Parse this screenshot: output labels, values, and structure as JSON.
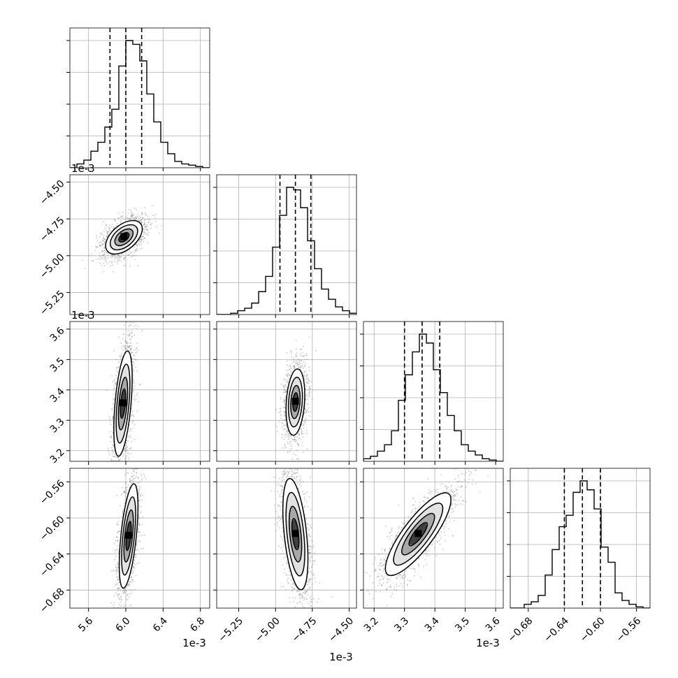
{
  "chart_data": {
    "type": "corner",
    "parameters": [
      {
        "ticks": [
          5.6,
          6.0,
          6.4,
          6.8
        ],
        "tick_labels": [
          "5.6",
          "6.0",
          "6.4",
          "6.8"
        ],
        "range": [
          5.4,
          6.9
        ],
        "offset": "1e-3",
        "quantiles": [
          5.83,
          6.0,
          6.17
        ],
        "hist": {
          "edges_start": 5.4,
          "bin_width": 0.075,
          "counts": [
            0,
            0.03,
            0.06,
            0.13,
            0.2,
            0.32,
            0.46,
            0.8,
            1.0,
            0.97,
            0.84,
            0.58,
            0.36,
            0.2,
            0.11,
            0.05,
            0.03,
            0.02,
            0.01,
            0.0
          ]
        }
      },
      {
        "ticks": [
          -5.25,
          -5.0,
          -4.75,
          -4.5
        ],
        "tick_labels": [
          "−5.25",
          "−5.00",
          "−4.75",
          "−4.50"
        ],
        "range": [
          -5.4,
          -4.45
        ],
        "offset": "1e-3",
        "quantiles": [
          -4.97,
          -4.865,
          -4.76
        ],
        "hist": {
          "edges_start": -5.4,
          "bin_width": 0.0475,
          "counts": [
            0,
            0,
            0.01,
            0.03,
            0.05,
            0.09,
            0.18,
            0.3,
            0.53,
            0.78,
            1.0,
            0.98,
            0.84,
            0.58,
            0.36,
            0.2,
            0.12,
            0.06,
            0.03,
            0.01
          ]
        }
      },
      {
        "ticks": [
          3.2,
          3.3,
          3.4,
          3.5,
          3.6
        ],
        "tick_labels": [
          "3.2",
          "3.3",
          "3.4",
          "3.5",
          "3.6"
        ],
        "range": [
          3.165,
          3.625
        ],
        "offset": "1e-3",
        "quantiles": [
          3.3,
          3.358,
          3.416
        ],
        "hist": {
          "edges_start": 3.165,
          "bin_width": 0.023,
          "counts": [
            0.02,
            0.04,
            0.08,
            0.13,
            0.24,
            0.48,
            0.68,
            0.86,
            1.0,
            0.93,
            0.72,
            0.54,
            0.36,
            0.24,
            0.13,
            0.08,
            0.05,
            0.02,
            0.01,
            0.0
          ]
        }
      },
      {
        "ticks": [
          -0.68,
          -0.64,
          -0.6,
          -0.56
        ],
        "tick_labels": [
          "−0.68",
          "−0.64",
          "−0.60",
          "−0.56"
        ],
        "range": [
          -0.7,
          -0.545
        ],
        "offset": "",
        "quantiles": [
          -0.64,
          -0.62,
          -0.6
        ],
        "hist": {
          "edges_start": -0.7,
          "bin_width": 0.00775,
          "counts": [
            0,
            0,
            0.03,
            0.05,
            0.1,
            0.26,
            0.46,
            0.64,
            0.73,
            0.91,
            1.0,
            0.93,
            0.78,
            0.48,
            0.36,
            0.12,
            0.06,
            0.03,
            0.01,
            0.0
          ]
        }
      }
    ],
    "pairs": [
      {
        "x": 0,
        "y": 1,
        "center": [
          5.98,
          -4.875
        ],
        "rx": 0.2,
        "ry": 0.09,
        "rotation_deg": 28
      },
      {
        "x": 0,
        "y": 2,
        "center": [
          5.97,
          3.355
        ],
        "rx": 0.18,
        "ry": 0.065,
        "rotation_deg": 74
      },
      {
        "x": 1,
        "y": 2,
        "center": [
          -4.865,
          3.36
        ],
        "rx": 0.11,
        "ry": 0.06,
        "rotation_deg": 82
      },
      {
        "x": 0,
        "y": 3,
        "center": [
          6.03,
          -0.62
        ],
        "rx": 0.33,
        "ry": 0.0095,
        "rotation_deg": 45
      },
      {
        "x": 1,
        "y": 3,
        "center": [
          -4.865,
          -0.618
        ],
        "rx": 0.14,
        "ry": 0.022,
        "rotation_deg": -57
      },
      {
        "x": 2,
        "y": 3,
        "center": [
          3.345,
          -0.618
        ],
        "rx": 0.11,
        "ry": 0.018,
        "rotation_deg": 24
      }
    ],
    "quantile_lines": "dashed",
    "grid": true,
    "colors": {
      "contour": "#000000",
      "points": "#888888",
      "histogram": "#000000"
    }
  }
}
